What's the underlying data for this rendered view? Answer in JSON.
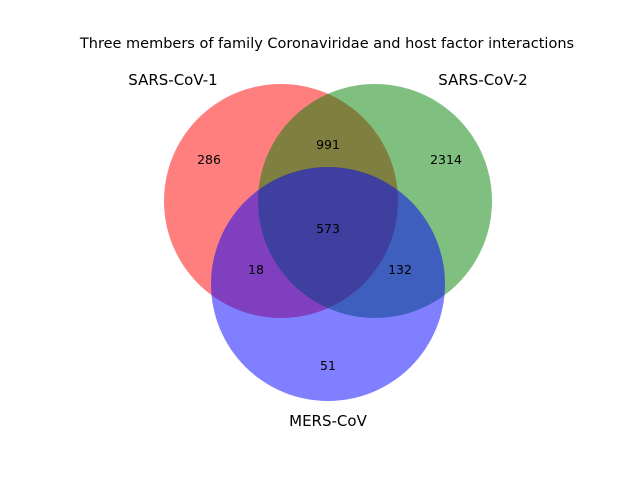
{
  "title": "Three members of family Coronaviridae and host factor interactions",
  "sets": [
    {
      "key": "A",
      "label": "SARS-CoV-1",
      "color": "#ff0000"
    },
    {
      "key": "B",
      "label": "SARS-CoV-2",
      "color": "#008000"
    },
    {
      "key": "C",
      "label": "MERS-CoV",
      "color": "#0000ff"
    }
  ],
  "set_alpha": 0.5,
  "regions": {
    "A_only": "286",
    "B_only": "2314",
    "C_only": "51",
    "AB_only": "991",
    "AC_only": "18",
    "BC_only": "132",
    "ABC": "573"
  }
}
